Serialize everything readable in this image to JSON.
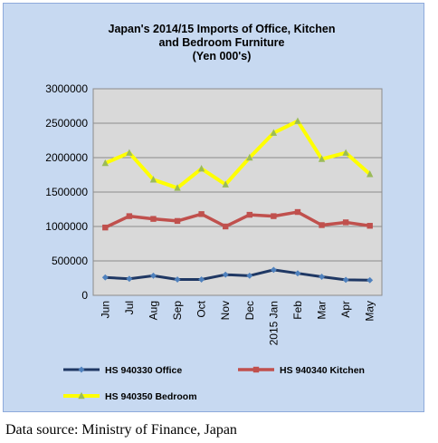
{
  "chart_data": {
    "type": "line",
    "title_lines": [
      "Japan's 2014/15  Imports of Office, Kitchen",
      "and Bedroom Furniture",
      "(Yen 000's)"
    ],
    "categories": [
      "Jun",
      "Jul",
      "Aug",
      "Sep",
      "Oct",
      "Nov",
      "Dec",
      "2015 Jan",
      "Feb",
      "Mar",
      "Apr",
      "May"
    ],
    "ylim": [
      0,
      3000000
    ],
    "yticks": [
      "0",
      "500000",
      "1000000",
      "1500000",
      "2000000",
      "2500000",
      "3000000"
    ],
    "grid": true,
    "legend_position": "bottom",
    "series": [
      {
        "name": "HS 940330 Office",
        "color": "#1f3864",
        "marker": "diamond",
        "values": [
          260000,
          240000,
          285000,
          230000,
          230000,
          300000,
          285000,
          370000,
          320000,
          270000,
          225000,
          220000
        ]
      },
      {
        "name": "HS 940340 Kitchen",
        "color": "#c0504d",
        "marker": "square",
        "values": [
          985000,
          1150000,
          1110000,
          1080000,
          1180000,
          1000000,
          1170000,
          1150000,
          1210000,
          1020000,
          1060000,
          1010000
        ]
      },
      {
        "name": "HS 940350 Bedroom",
        "color": "#ffff00",
        "marker": "triangle",
        "values": [
          1920000,
          2070000,
          1680000,
          1560000,
          1840000,
          1610000,
          2000000,
          2360000,
          2530000,
          1980000,
          2070000,
          1760000
        ]
      }
    ]
  },
  "source_text": "Data source: Ministry of Finance, Japan"
}
